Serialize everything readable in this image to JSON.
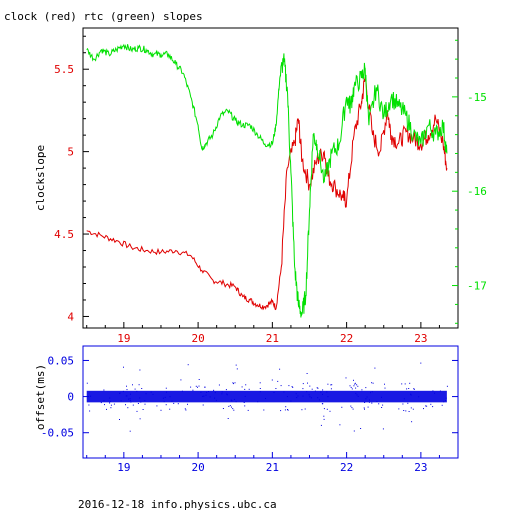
{
  "title": "clock (red) rtc (green) slopes",
  "footer": "2016-12-18 info.physics.ubc.ca",
  "colors": {
    "red": "#e00000",
    "green": "#00e000",
    "blue": "#0000e0",
    "axis": "#000000"
  },
  "chart_data": [
    {
      "type": "line",
      "ylabel": "clockslope",
      "xlim": [
        18.45,
        23.5
      ],
      "ylim": [
        3.93,
        5.75
      ],
      "y2lim": [
        -17.45,
        -14.27
      ],
      "xticks": [
        19,
        20,
        21,
        22,
        23
      ],
      "yticks": [
        4,
        4.5,
        5,
        5.5
      ],
      "yticks_right": [
        -15,
        -16,
        -17
      ],
      "xtick_labels": [
        "19",
        "20",
        "21",
        "22",
        "23"
      ],
      "ytick_labels": [
        "4",
        "4.5",
        "5",
        "5.5"
      ],
      "ytick_right_labels": [
        "-15",
        "-16",
        "-17"
      ],
      "series": [
        {
          "color": "red",
          "axis": "left",
          "x": [
            18.5,
            18.7,
            18.9,
            19.1,
            19.3,
            19.5,
            19.7,
            19.9,
            20.05,
            20.2,
            20.35,
            20.5,
            20.6,
            20.7,
            20.8,
            20.9,
            21.0,
            21.05,
            21.12,
            21.2,
            21.3,
            21.35,
            21.4,
            21.5,
            21.6,
            21.7,
            21.75,
            21.85,
            21.95,
            22.0,
            22.1,
            22.2,
            22.25,
            22.35,
            22.45,
            22.55,
            22.6,
            22.7,
            22.8,
            22.9,
            23.0,
            23.1,
            23.2,
            23.3,
            23.35
          ],
          "y": [
            4.52,
            4.49,
            4.46,
            4.42,
            4.4,
            4.39,
            4.4,
            4.37,
            4.28,
            4.22,
            4.2,
            4.18,
            4.12,
            4.1,
            4.07,
            4.06,
            4.09,
            4.05,
            4.3,
            4.9,
            5.05,
            5.2,
            4.95,
            4.8,
            4.95,
            5.0,
            4.85,
            4.78,
            4.72,
            4.7,
            5.1,
            5.3,
            5.45,
            5.1,
            5.0,
            5.25,
            5.1,
            5.05,
            5.12,
            5.08,
            5.05,
            5.1,
            5.2,
            5.05,
            4.9
          ]
        },
        {
          "color": "green",
          "axis": "right",
          "x": [
            18.5,
            18.6,
            18.7,
            18.8,
            18.9,
            19.0,
            19.1,
            19.2,
            19.3,
            19.4,
            19.5,
            19.6,
            19.7,
            19.8,
            19.9,
            20.0,
            20.05,
            20.1,
            20.2,
            20.3,
            20.4,
            20.5,
            20.6,
            20.7,
            20.8,
            20.9,
            21.0,
            21.05,
            21.1,
            21.15,
            21.2,
            21.25,
            21.3,
            21.35,
            21.4,
            21.45,
            21.5,
            21.55,
            21.6,
            21.7,
            21.8,
            21.9,
            22.0,
            22.05,
            22.1,
            22.2,
            22.25,
            22.3,
            22.4,
            22.5,
            22.6,
            22.7,
            22.8,
            22.9,
            23.0,
            23.1,
            23.2,
            23.3,
            23.35
          ],
          "y": [
            -14.5,
            -14.6,
            -14.5,
            -14.55,
            -14.5,
            -14.45,
            -14.5,
            -14.48,
            -14.5,
            -14.55,
            -14.55,
            -14.55,
            -14.65,
            -14.75,
            -15.0,
            -15.3,
            -15.55,
            -15.5,
            -15.4,
            -15.2,
            -15.15,
            -15.25,
            -15.3,
            -15.3,
            -15.4,
            -15.5,
            -15.5,
            -15.3,
            -14.8,
            -14.6,
            -14.9,
            -15.8,
            -16.8,
            -17.2,
            -17.3,
            -17.1,
            -16.2,
            -15.4,
            -15.5,
            -15.9,
            -15.6,
            -15.5,
            -15.0,
            -15.1,
            -14.9,
            -14.8,
            -14.7,
            -15.3,
            -14.9,
            -15.2,
            -15.0,
            -15.1,
            -15.2,
            -15.4,
            -15.5,
            -15.3,
            -15.4,
            -15.3,
            -15.6
          ]
        }
      ]
    },
    {
      "type": "scatter",
      "ylabel": "offset(ms)",
      "xlim": [
        18.45,
        23.5
      ],
      "ylim": [
        -0.085,
        0.07
      ],
      "xticks": [
        19,
        20,
        21,
        22,
        23
      ],
      "yticks": [
        0.05,
        0,
        -0.05
      ],
      "xtick_labels": [
        "19",
        "20",
        "21",
        "22",
        "23"
      ],
      "ytick_labels": [
        "0.05",
        "0",
        "-0.05"
      ],
      "series": [
        {
          "color": "blue",
          "x_range": [
            18.5,
            23.35
          ],
          "center": 0.0,
          "band_halfwidth": 0.008
        }
      ]
    }
  ]
}
